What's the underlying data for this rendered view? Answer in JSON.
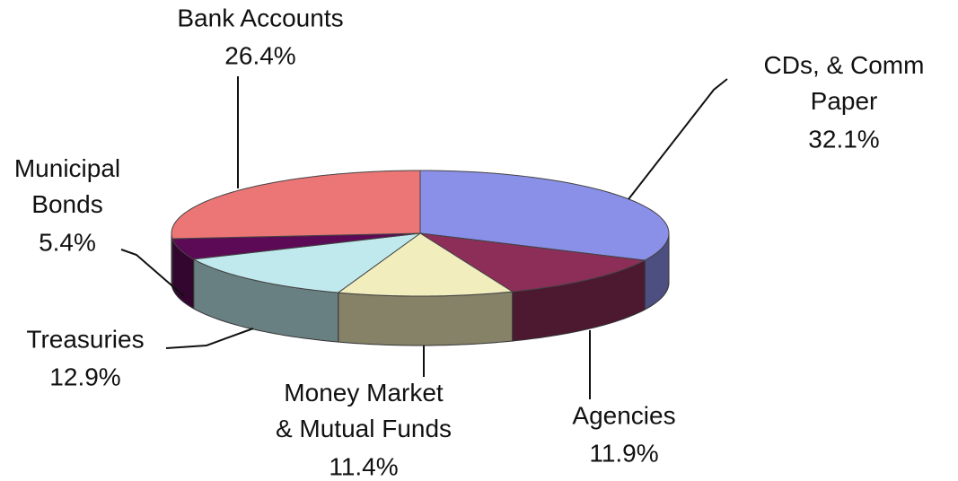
{
  "chart_data": {
    "type": "pie",
    "categories": [
      "CDs, & Comm Paper",
      "Agencies",
      "Money Market & Mutual Funds",
      "Treasuries",
      "Municipal Bonds",
      "Bank Accounts"
    ],
    "values": [
      32.1,
      11.9,
      11.4,
      12.9,
      5.4,
      26.4
    ],
    "value_labels": [
      "32.1%",
      "11.9%",
      "11.4%",
      "12.9%",
      "5.4%",
      "26.4%"
    ],
    "colors": [
      "#8a8fe8",
      "#8c2e58",
      "#f1edbd",
      "#bfe9ec",
      "#5c0a55",
      "#ec7676"
    ]
  }
}
